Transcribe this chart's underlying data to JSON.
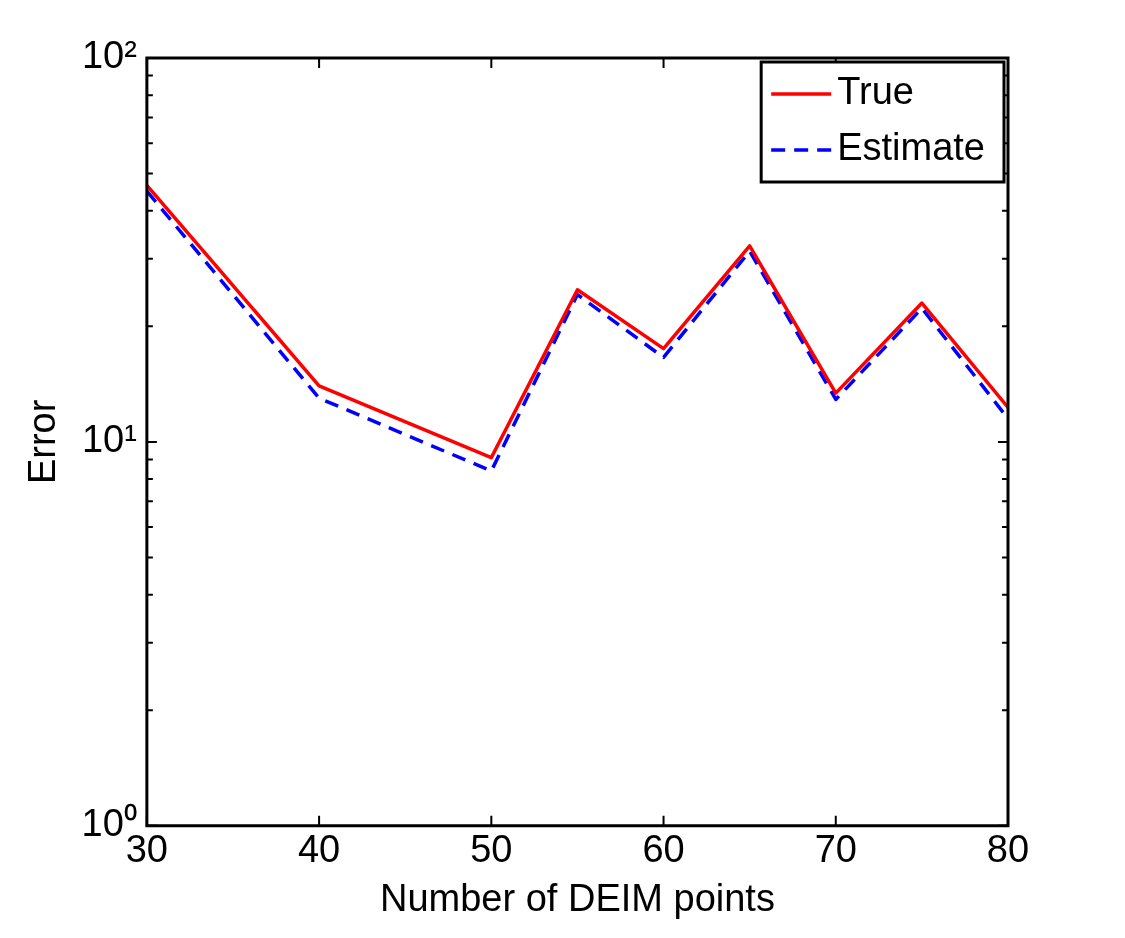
{
  "chart_data": {
    "type": "line",
    "xlabel": "Number of DEIM points",
    "ylabel": "Error",
    "x": [
      30,
      40,
      50,
      55,
      60,
      65,
      70,
      75,
      80
    ],
    "series": [
      {
        "name": "True",
        "color": "#ff0000",
        "line_style": "solid",
        "values": [
          46.6,
          14.0,
          9.1,
          24.9,
          17.5,
          32.4,
          13.4,
          23.0,
          12.3
        ]
      },
      {
        "name": "Estimate",
        "color": "#0000ff",
        "line_style": "dashed",
        "values": [
          45,
          13.0,
          8.4,
          24.2,
          16.6,
          31.4,
          12.9,
          22.3,
          11.5
        ]
      }
    ],
    "xlim": [
      30,
      80
    ],
    "xticks": [
      30,
      40,
      50,
      60,
      70,
      80
    ],
    "ylim": [
      1,
      100
    ],
    "yticks": [
      {
        "value": 1,
        "label": "10⁰"
      },
      {
        "value": 2,
        "label": null
      },
      {
        "value": 3,
        "label": null
      },
      {
        "value": 4,
        "label": null
      },
      {
        "value": 5,
        "label": null
      },
      {
        "value": 6,
        "label": null
      },
      {
        "value": 7,
        "label": null
      },
      {
        "value": 8,
        "label": null
      },
      {
        "value": 9,
        "label": null
      },
      {
        "value": 10,
        "label": "10¹"
      },
      {
        "value": 20,
        "label": null
      },
      {
        "value": 30,
        "label": null
      },
      {
        "value": 40,
        "label": null
      },
      {
        "value": 50,
        "label": null
      },
      {
        "value": 60,
        "label": null
      },
      {
        "value": 70,
        "label": null
      },
      {
        "value": 80,
        "label": null
      },
      {
        "value": 90,
        "label": null
      },
      {
        "value": 100,
        "label": "10²"
      }
    ],
    "log": "y",
    "grid": false,
    "legend": "top right",
    "marker": "none"
  }
}
